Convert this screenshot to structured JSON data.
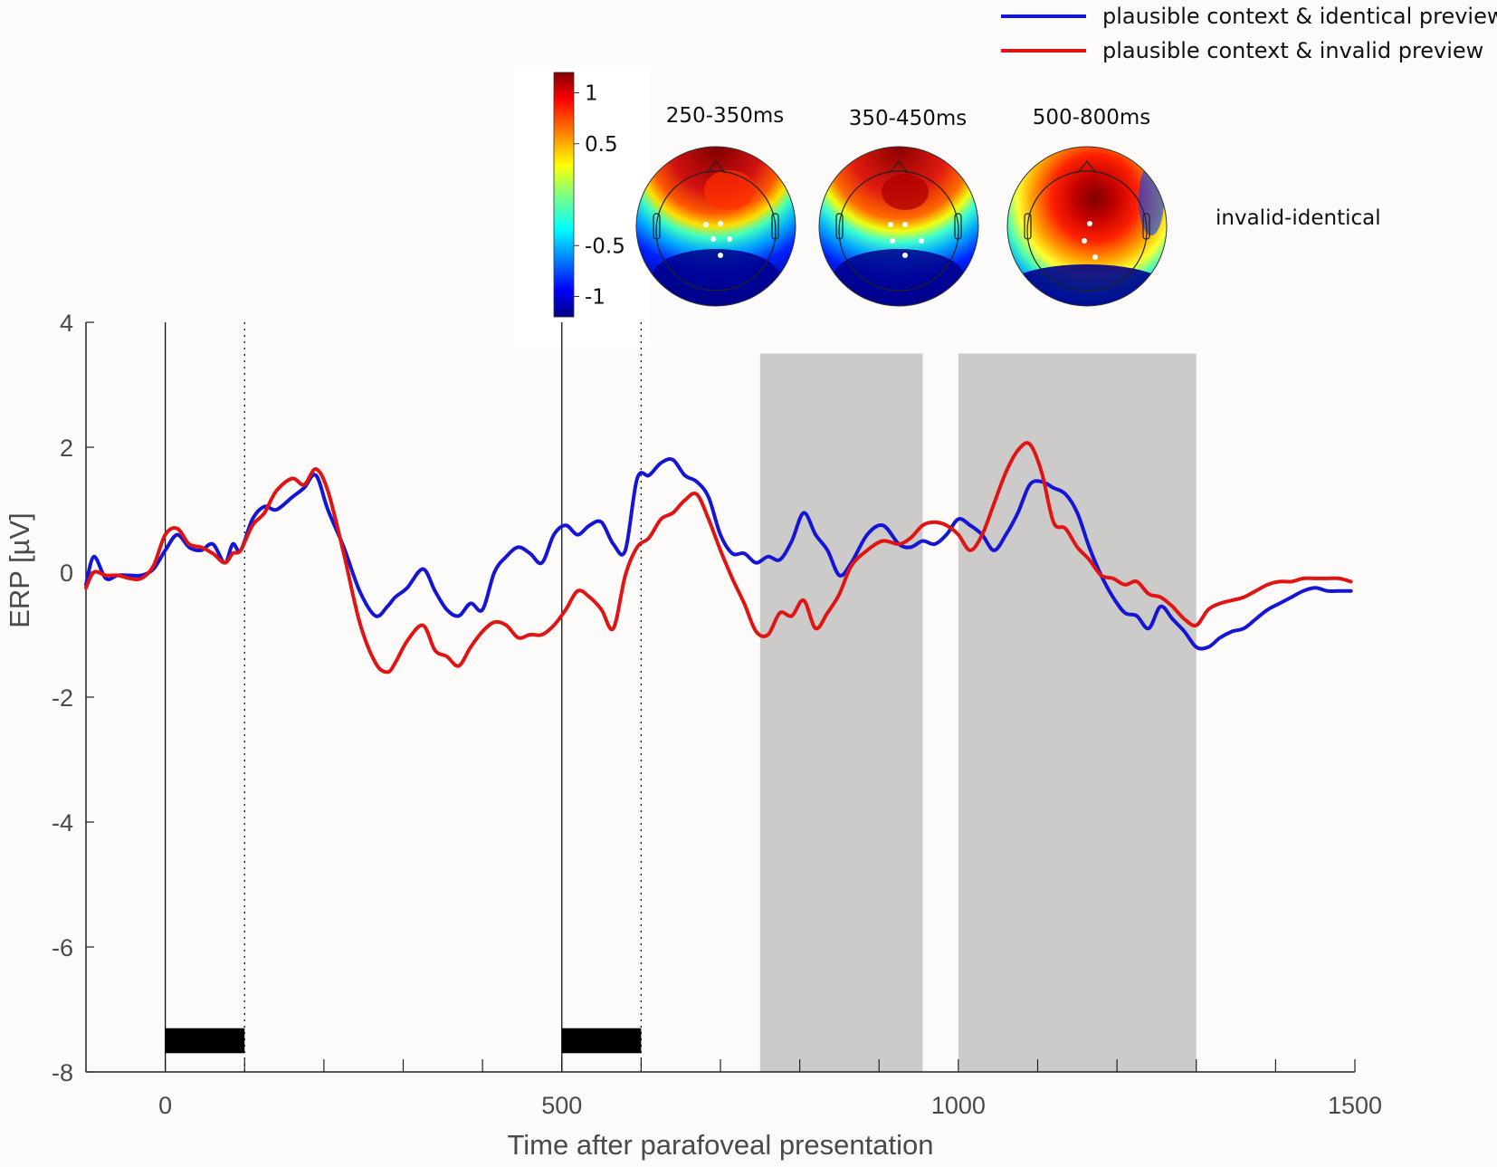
{
  "chart_data": {
    "type": "line",
    "xlabel": "Time after parafoveal presentation",
    "ylabel": "ERP [µV]",
    "xlim": [
      -100,
      1500
    ],
    "ylim": [
      -8,
      4
    ],
    "xticks": [
      0,
      500,
      1000,
      1500
    ],
    "yticks": [
      4,
      2,
      0,
      -2,
      -4,
      -6,
      -8
    ],
    "minor_xticks": [
      100,
      200,
      300,
      400,
      600,
      700,
      800,
      900,
      1100,
      1200,
      1300,
      1400
    ],
    "event_lines_solid": [
      0,
      500
    ],
    "event_lines_dotted": [
      100,
      600
    ],
    "stimulus_bars": [
      [
        0,
        100
      ],
      [
        500,
        600
      ]
    ],
    "stimulus_bar_y": [
      -7.7,
      -7.3
    ],
    "shaded_windows": [
      [
        750,
        955
      ],
      [
        1000,
        1300
      ]
    ],
    "shade_ylim": [
      -8,
      3.5
    ],
    "x": [
      -100,
      -90,
      -75,
      -60,
      -45,
      -30,
      -15,
      0,
      15,
      30,
      45,
      60,
      75,
      85,
      95,
      110,
      125,
      140,
      160,
      175,
      190,
      205,
      225,
      245,
      265,
      280,
      290,
      305,
      325,
      340,
      355,
      370,
      385,
      400,
      415,
      430,
      445,
      460,
      475,
      490,
      505,
      520,
      535,
      550,
      565,
      580,
      595,
      610,
      625,
      640,
      655,
      670,
      685,
      700,
      715,
      730,
      745,
      760,
      775,
      790,
      805,
      820,
      835,
      850,
      865,
      885,
      905,
      925,
      940,
      955,
      970,
      985,
      1000,
      1015,
      1030,
      1045,
      1060,
      1075,
      1090,
      1105,
      1120,
      1135,
      1150,
      1165,
      1180,
      1195,
      1210,
      1225,
      1240,
      1255,
      1270,
      1285,
      1300,
      1315,
      1330,
      1345,
      1360,
      1375,
      1390,
      1405,
      1420,
      1435,
      1450,
      1465,
      1480,
      1495
    ],
    "series": [
      {
        "name": "plausible context & identical preview",
        "color": "#1515d6",
        "values": [
          -0.2,
          0.25,
          -0.1,
          -0.05,
          -0.05,
          -0.05,
          0.05,
          0.35,
          0.6,
          0.4,
          0.35,
          0.45,
          0.15,
          0.45,
          0.35,
          0.85,
          1.05,
          1.0,
          1.2,
          1.35,
          1.55,
          1.0,
          0.4,
          -0.3,
          -0.7,
          -0.55,
          -0.4,
          -0.25,
          0.05,
          -0.3,
          -0.6,
          -0.7,
          -0.5,
          -0.6,
          0.0,
          0.25,
          0.4,
          0.3,
          0.15,
          0.6,
          0.75,
          0.6,
          0.75,
          0.8,
          0.45,
          0.35,
          1.5,
          1.55,
          1.75,
          1.8,
          1.55,
          1.45,
          1.2,
          0.6,
          0.3,
          0.3,
          0.15,
          0.25,
          0.2,
          0.5,
          0.95,
          0.6,
          0.35,
          -0.05,
          0.15,
          0.6,
          0.75,
          0.45,
          0.4,
          0.5,
          0.45,
          0.6,
          0.85,
          0.75,
          0.6,
          0.35,
          0.6,
          0.95,
          1.4,
          1.45,
          1.35,
          1.25,
          0.95,
          0.4,
          -0.05,
          -0.4,
          -0.65,
          -0.7,
          -0.9,
          -0.55,
          -0.75,
          -0.95,
          -1.2,
          -1.2,
          -1.05,
          -0.95,
          -0.9,
          -0.75,
          -0.6,
          -0.5,
          -0.4,
          -0.3,
          -0.25,
          -0.3,
          -0.3,
          -0.3
        ]
      },
      {
        "name": "plausible context & invalid preview",
        "color": "#e11414",
        "values": [
          -0.25,
          0.0,
          -0.05,
          -0.05,
          -0.1,
          -0.1,
          0.1,
          0.6,
          0.7,
          0.45,
          0.4,
          0.3,
          0.15,
          0.3,
          0.35,
          0.75,
          0.95,
          1.3,
          1.5,
          1.4,
          1.65,
          1.3,
          0.3,
          -0.8,
          -1.45,
          -1.6,
          -1.45,
          -1.1,
          -0.85,
          -1.25,
          -1.35,
          -1.5,
          -1.2,
          -0.95,
          -0.8,
          -0.85,
          -1.05,
          -1.0,
          -1.0,
          -0.85,
          -0.6,
          -0.3,
          -0.4,
          -0.6,
          -0.9,
          -0.05,
          0.4,
          0.55,
          0.85,
          0.95,
          1.15,
          1.25,
          0.85,
          0.35,
          -0.1,
          -0.5,
          -0.95,
          -1.0,
          -0.65,
          -0.7,
          -0.45,
          -0.9,
          -0.65,
          -0.35,
          0.1,
          0.35,
          0.5,
          0.45,
          0.55,
          0.75,
          0.8,
          0.75,
          0.6,
          0.35,
          0.6,
          1.1,
          1.6,
          1.95,
          2.05,
          1.6,
          0.8,
          0.7,
          0.4,
          0.2,
          -0.05,
          -0.1,
          -0.2,
          -0.15,
          -0.35,
          -0.4,
          -0.55,
          -0.75,
          -0.85,
          -0.6,
          -0.5,
          -0.45,
          -0.4,
          -0.3,
          -0.2,
          -0.15,
          -0.15,
          -0.1,
          -0.1,
          -0.1,
          -0.1,
          -0.15
        ]
      }
    ],
    "legend": {
      "placement": "top-right",
      "entries": [
        "plausible context & identical preview",
        "plausible context & invalid preview"
      ]
    },
    "inset": {
      "type": "heatmap",
      "condition_label": "invalid-identical",
      "topomaps": [
        "250-350ms",
        "350-450ms",
        "500-800ms"
      ],
      "colorbar": {
        "colormap": "jet",
        "range": [
          -1.2,
          1.2
        ],
        "tick_labels": [
          {
            "value": 1,
            "label": "1"
          },
          {
            "value": 0.5,
            "label": "0.5"
          },
          {
            "value": -0.5,
            "label": "-0.5"
          },
          {
            "value": -1,
            "label": "-1"
          }
        ]
      }
    }
  }
}
